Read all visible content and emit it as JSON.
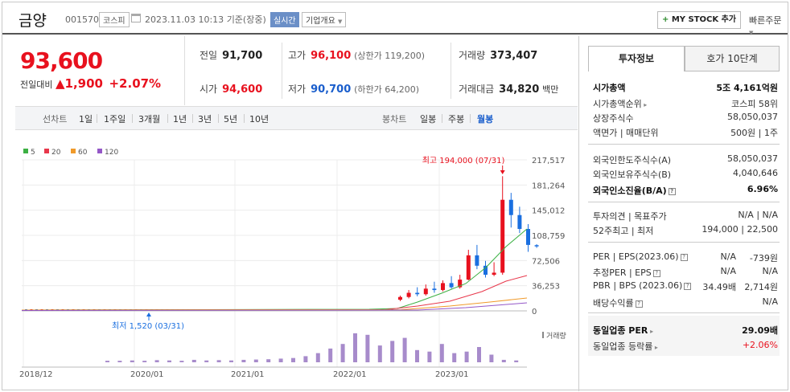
{
  "header": {
    "name": "금양",
    "code": "001570",
    "market": "코스피",
    "date": "2023.11.03 10:13",
    "basis": "기준(장중)",
    "realtime": "실시간",
    "company_info": "기업개요",
    "mystock": "MY STOCK 추가",
    "quick_order": "빠른주문"
  },
  "price": {
    "current": "93,600",
    "change_label": "전일대비",
    "change_value": "1,900",
    "change_pct": "+2.07%"
  },
  "summary": {
    "prev_label": "전일",
    "prev": "91,700",
    "high_label": "고가",
    "high": "96,100",
    "upper_limit": "(상한가 119,200)",
    "volume_label": "거래량",
    "volume": "373,407",
    "open_label": "시가",
    "open": "94,600",
    "low_label": "저가",
    "low": "90,700",
    "lower_limit": "(하한가 64,200)",
    "amount_label": "거래대금",
    "amount": "34,820",
    "amount_unit": "백만"
  },
  "period_bar": {
    "line_label": "선차트",
    "line_options": [
      "1일",
      "1주일",
      "3개월",
      "1년",
      "3년",
      "5년",
      "10년"
    ],
    "candle_label": "봉차트",
    "candle_options": [
      "일봉",
      "주봉",
      "월봉"
    ],
    "candle_selected": "월봉"
  },
  "chart_data": {
    "type": "candlestick",
    "legend": [
      {
        "label": "5",
        "color": "#3cb043"
      },
      {
        "label": "20",
        "color": "#e8374b"
      },
      {
        "label": "60",
        "color": "#f09a2a"
      },
      {
        "label": "120",
        "color": "#9457c7"
      }
    ],
    "y_ticks": [
      "217,517",
      "181,264",
      "145,012",
      "108,759",
      "72,506",
      "36,253",
      "0"
    ],
    "ylim": [
      0,
      217517
    ],
    "x_ticks": [
      "2018/12",
      "2020/01",
      "2021/01",
      "2022/01",
      "2023/01"
    ],
    "max_label": "최고 194,000 (07/31)",
    "min_label": "최저 1,520 (03/31)",
    "volume_label": "거래량",
    "up_color": "#e8111e",
    "down_color": "#1a6fe0",
    "late_candles": [
      {
        "o": 16000,
        "c": 20000,
        "h": 22000,
        "l": 14000
      },
      {
        "o": 20000,
        "c": 26000,
        "h": 30000,
        "l": 18000
      },
      {
        "o": 26000,
        "c": 24000,
        "h": 34000,
        "l": 21000
      },
      {
        "o": 24000,
        "c": 32000,
        "h": 38000,
        "l": 22000
      },
      {
        "o": 32000,
        "c": 30000,
        "h": 42000,
        "l": 26000
      },
      {
        "o": 30000,
        "c": 40000,
        "h": 44000,
        "l": 28000
      },
      {
        "o": 40000,
        "c": 34000,
        "h": 50000,
        "l": 32000
      },
      {
        "o": 34000,
        "c": 45000,
        "h": 52000,
        "l": 32000
      },
      {
        "o": 45000,
        "c": 80000,
        "h": 88000,
        "l": 44000
      },
      {
        "o": 80000,
        "c": 65000,
        "h": 95000,
        "l": 60000
      },
      {
        "o": 65000,
        "c": 52000,
        "h": 72000,
        "l": 48000
      },
      {
        "o": 52000,
        "c": 55000,
        "h": 70000,
        "l": 50000
      },
      {
        "o": 55000,
        "c": 160000,
        "h": 194000,
        "l": 52000
      },
      {
        "o": 160000,
        "c": 138000,
        "h": 170000,
        "l": 120000
      },
      {
        "o": 138000,
        "c": 118000,
        "h": 150000,
        "l": 112000
      },
      {
        "o": 118000,
        "c": 95000,
        "h": 125000,
        "l": 85000
      },
      {
        "o": 94600,
        "c": 93600,
        "h": 96100,
        "l": 90700
      }
    ],
    "volume": [
      0.05,
      0.05,
      0.06,
      0.05,
      0.07,
      0.06,
      0.05,
      0.08,
      0.06,
      0.07,
      0.06,
      0.08,
      0.09,
      0.1,
      0.12,
      0.14,
      0.2,
      0.3,
      0.45,
      0.6,
      0.95,
      0.9,
      0.55,
      0.7,
      0.8,
      0.4,
      0.35,
      0.6,
      0.3,
      0.35,
      0.5,
      0.25,
      0.08,
      0.06
    ]
  },
  "right_panel": {
    "tab_invest": "투자정보",
    "tab_hoga": "호가 10단계",
    "rows": [
      {
        "k": "시가총액",
        "v": "5조 4,161억원"
      },
      {
        "k": "시가총액순위",
        "v": "코스피 58위"
      },
      {
        "k": "상장주식수",
        "v": "58,050,037"
      },
      {
        "k": "액면가 | 매매단위",
        "v": "500원 | 1주"
      },
      {
        "k": "외국인한도주식수(A)",
        "v": "58,050,037"
      },
      {
        "k": "외국인보유주식수(B)",
        "v": "4,040,646"
      },
      {
        "k": "외국인소진율(B/A)",
        "v": "6.96%"
      },
      {
        "k": "투자의견 | 목표주가",
        "v": "N/A | N/A"
      },
      {
        "k": "52주최고 | 최저",
        "v": "194,000 | 22,500"
      },
      {
        "k": "PER | EPS(2023.06)",
        "v2": "N/A",
        "v": "-739원"
      },
      {
        "k": "추정PER | EPS",
        "v2": "N/A",
        "v": "N/A"
      },
      {
        "k": "PBR | BPS (2023.06)",
        "v2": "34.49배",
        "v": "2,714원"
      },
      {
        "k": "배당수익률",
        "v": "N/A"
      },
      {
        "k": "동일업종 PER",
        "v": "29.09배"
      },
      {
        "k": "동일업종 등락률",
        "v": "+2.06%"
      }
    ]
  }
}
